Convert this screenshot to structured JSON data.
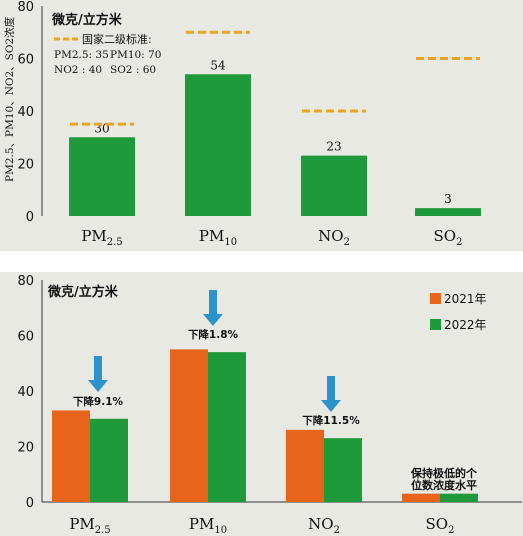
{
  "colors": {
    "green": "#1f9a3a",
    "orange": "#e8641b",
    "dash": "#f0a21a",
    "arrow": "#2b93c9",
    "text": "#111111",
    "panel": "#e9e9e4"
  },
  "chart_data": [
    {
      "type": "bar",
      "unit_label": "微克/立方米",
      "ylabel": "PM2.5、PM10、NO2、SO2浓度",
      "ylim": [
        0,
        80
      ],
      "yticks": [
        0,
        20,
        40,
        60,
        80
      ],
      "categories": [
        "PM2.5",
        "PM10",
        "NO2",
        "SO2"
      ],
      "series": [
        {
          "values": [
            30,
            54,
            23,
            3
          ]
        }
      ],
      "standard": {
        "legend_label": "国家二级标准:",
        "values": [
          35,
          70,
          40,
          60
        ],
        "notes": [
          "PM2.5: 35",
          "PM10: 70",
          "NO2 : 40",
          "SO2 : 60"
        ]
      },
      "grid": false
    },
    {
      "type": "bar",
      "unit_label": "微克/立方米",
      "ylim": [
        0,
        80
      ],
      "yticks": [
        0,
        20,
        40,
        60,
        80
      ],
      "categories": [
        "PM2.5",
        "PM10",
        "NO2",
        "SO2"
      ],
      "series": [
        {
          "name": "2021年",
          "values": [
            33,
            55,
            26,
            3
          ]
        },
        {
          "name": "2022年",
          "values": [
            30,
            54,
            23,
            3
          ]
        }
      ],
      "annotations": [
        "下降9.1%",
        "下降1.8%",
        "下降11.5%",
        "保持极低的个位数浓度水平"
      ],
      "legend": "top-right",
      "grid": false
    }
  ]
}
